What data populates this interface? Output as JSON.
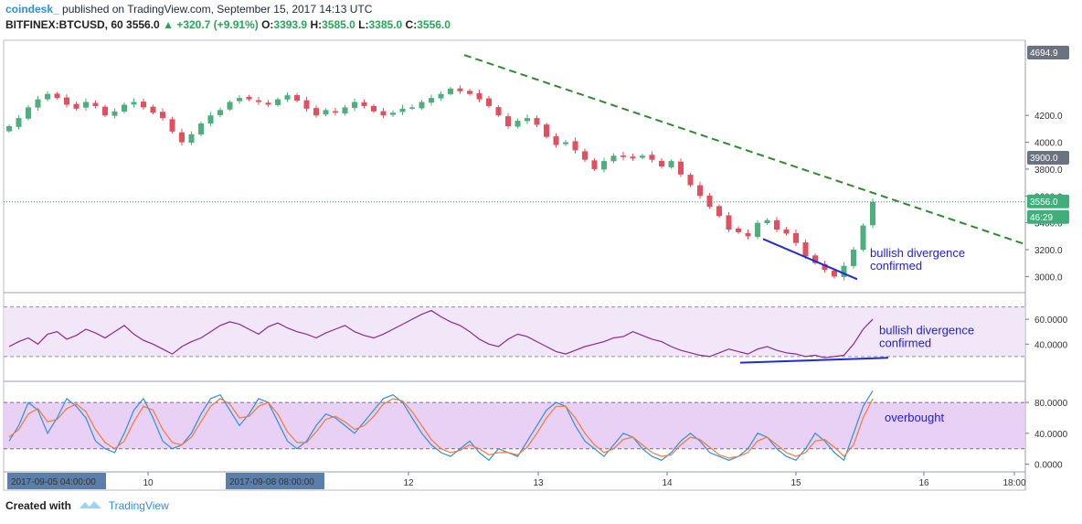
{
  "header": {
    "publisher": "coindesk_",
    "published_text": "published on TradingView.com, September 15, 2017 14:13 UTC",
    "symbol": "BITFINEX:BTCUSD, 60",
    "last": "3556.0",
    "change_arrow": "▲",
    "change": "+320.7 (+9.91%)",
    "o_label": "O:",
    "o": "3393.9",
    "h_label": "H:",
    "h": "3585.0",
    "l_label": "L:",
    "l": "3385.0",
    "c_label": "C:",
    "c": "3556.0"
  },
  "footer": {
    "created_with": "Created with",
    "brand": "TradingView",
    "brand_icon": "tradingview-logo-icon"
  },
  "colors": {
    "up": "#4caf7d",
    "down": "#e0505e",
    "rsi": "#8b2a8f",
    "stoch_k": "#2f8fe0",
    "stoch_d": "#f07a3a",
    "trend": "#2f8a2f",
    "divergence": "#1f2bd6",
    "band": "#eedff7"
  },
  "chart_data": [
    {
      "type": "candlestick",
      "title": "BITFINEX:BTCUSD, 60",
      "y_axis_ticks": [
        "3000.0",
        "3200.0",
        "3400.0",
        "3600.0",
        "3800.0",
        "4000.0",
        "4200.0"
      ],
      "ylim": [
        2880,
        4760
      ],
      "x_axis_ticks": [
        "10",
        "12",
        "13",
        "14",
        "15",
        "16",
        "18:00"
      ],
      "x_axis_highlight_labels": [
        "2017-09-05 04:00:00",
        "2017-09-08 08:00:00"
      ],
      "price_labels": {
        "high_marker": "4694.9",
        "level_marker": "3900.0",
        "last_price": "3556.0",
        "countdown": "46:29"
      },
      "last_price": 3556.0,
      "close_path": [
        4120,
        4180,
        4260,
        4320,
        4360,
        4330,
        4280,
        4250,
        4300,
        4270,
        4200,
        4230,
        4280,
        4300,
        4260,
        4220,
        4180,
        4080,
        4000,
        4060,
        4140,
        4200,
        4240,
        4300,
        4330,
        4320,
        4300,
        4280,
        4320,
        4350,
        4310,
        4250,
        4200,
        4240,
        4220,
        4260,
        4300,
        4270,
        4230,
        4200,
        4220,
        4250,
        4260,
        4300,
        4330,
        4360,
        4400,
        4380,
        4360,
        4320,
        4270,
        4200,
        4120,
        4160,
        4180,
        4130,
        4040,
        3980,
        4000,
        3940,
        3870,
        3800,
        3860,
        3900,
        3890,
        3880,
        3900,
        3870,
        3820,
        3860,
        3760,
        3680,
        3600,
        3520,
        3450,
        3350,
        3330,
        3300,
        3400,
        3420,
        3350,
        3320,
        3250,
        3150,
        3100,
        3050,
        3000,
        3080,
        3200,
        3380,
        3556
      ],
      "annotations": [
        {
          "text": "bullish divergence",
          "line2": "confirmed",
          "pane": "price"
        },
        {
          "text": "bullish divergence",
          "line2": "confirmed",
          "pane": "rsi"
        },
        {
          "text": "overbought",
          "pane": "stoch"
        }
      ],
      "trendline": {
        "style": "dashed",
        "from": {
          "x": "12 (~08:00)",
          "y": 4650
        },
        "to": {
          "x": "15 (~14:00)",
          "y": 3600
        }
      },
      "divergence_line": {
        "from": {
          "x": "14 (~18:00)",
          "y": 3280
        },
        "to": {
          "x": "15 (~12:00)",
          "y": 2970
        }
      }
    },
    {
      "type": "line",
      "title": "RSI",
      "y_axis_ticks": [
        "40.0000",
        "60.0000"
      ],
      "ylim": [
        10,
        80
      ],
      "bands": [
        30,
        70
      ],
      "values": [
        38,
        42,
        45,
        40,
        48,
        50,
        44,
        47,
        52,
        49,
        45,
        50,
        55,
        48,
        43,
        40,
        36,
        32,
        38,
        42,
        45,
        50,
        55,
        58,
        56,
        52,
        48,
        54,
        57,
        53,
        50,
        48,
        45,
        49,
        52,
        55,
        50,
        47,
        45,
        48,
        52,
        56,
        60,
        64,
        67,
        62,
        58,
        55,
        50,
        44,
        40,
        38,
        44,
        48,
        46,
        42,
        38,
        34,
        32,
        35,
        38,
        40,
        42,
        45,
        46,
        50,
        47,
        44,
        42,
        38,
        35,
        33,
        31,
        30,
        33,
        36,
        34,
        32,
        36,
        38,
        35,
        33,
        32,
        30,
        31,
        29,
        30,
        31,
        40,
        52,
        60
      ]
    },
    {
      "type": "line",
      "title": "Stochastic",
      "y_axis_ticks": [
        "0.0000",
        "40.0000",
        "80.0000"
      ],
      "ylim": [
        -10,
        105
      ],
      "bands": [
        20,
        80
      ],
      "series": [
        {
          "key": "k",
          "values": [
            30,
            50,
            80,
            70,
            40,
            60,
            85,
            75,
            60,
            30,
            20,
            15,
            40,
            70,
            85,
            60,
            30,
            20,
            25,
            40,
            65,
            85,
            90,
            70,
            50,
            65,
            85,
            80,
            55,
            30,
            20,
            30,
            50,
            65,
            60,
            50,
            40,
            55,
            70,
            85,
            90,
            80,
            60,
            40,
            25,
            15,
            10,
            20,
            30,
            15,
            5,
            20,
            15,
            10,
            30,
            50,
            70,
            80,
            75,
            50,
            30,
            20,
            10,
            25,
            40,
            35,
            20,
            10,
            5,
            15,
            30,
            40,
            30,
            15,
            10,
            5,
            10,
            20,
            40,
            35,
            20,
            10,
            5,
            20,
            40,
            30,
            15,
            5,
            40,
            75,
            95
          ]
        },
        {
          "key": "d",
          "values": [
            35,
            45,
            65,
            72,
            55,
            58,
            72,
            78,
            68,
            45,
            28,
            20,
            30,
            55,
            75,
            70,
            45,
            28,
            25,
            35,
            55,
            75,
            85,
            78,
            60,
            62,
            75,
            80,
            65,
            42,
            28,
            28,
            42,
            58,
            62,
            55,
            45,
            50,
            62,
            78,
            85,
            82,
            68,
            50,
            32,
            20,
            15,
            18,
            25,
            20,
            12,
            15,
            15,
            12,
            22,
            40,
            60,
            75,
            75,
            60,
            40,
            25,
            15,
            20,
            32,
            35,
            25,
            15,
            10,
            12,
            25,
            35,
            32,
            22,
            12,
            8,
            10,
            15,
            30,
            35,
            25,
            15,
            10,
            15,
            30,
            32,
            22,
            10,
            25,
            60,
            85
          ]
        }
      ]
    }
  ]
}
